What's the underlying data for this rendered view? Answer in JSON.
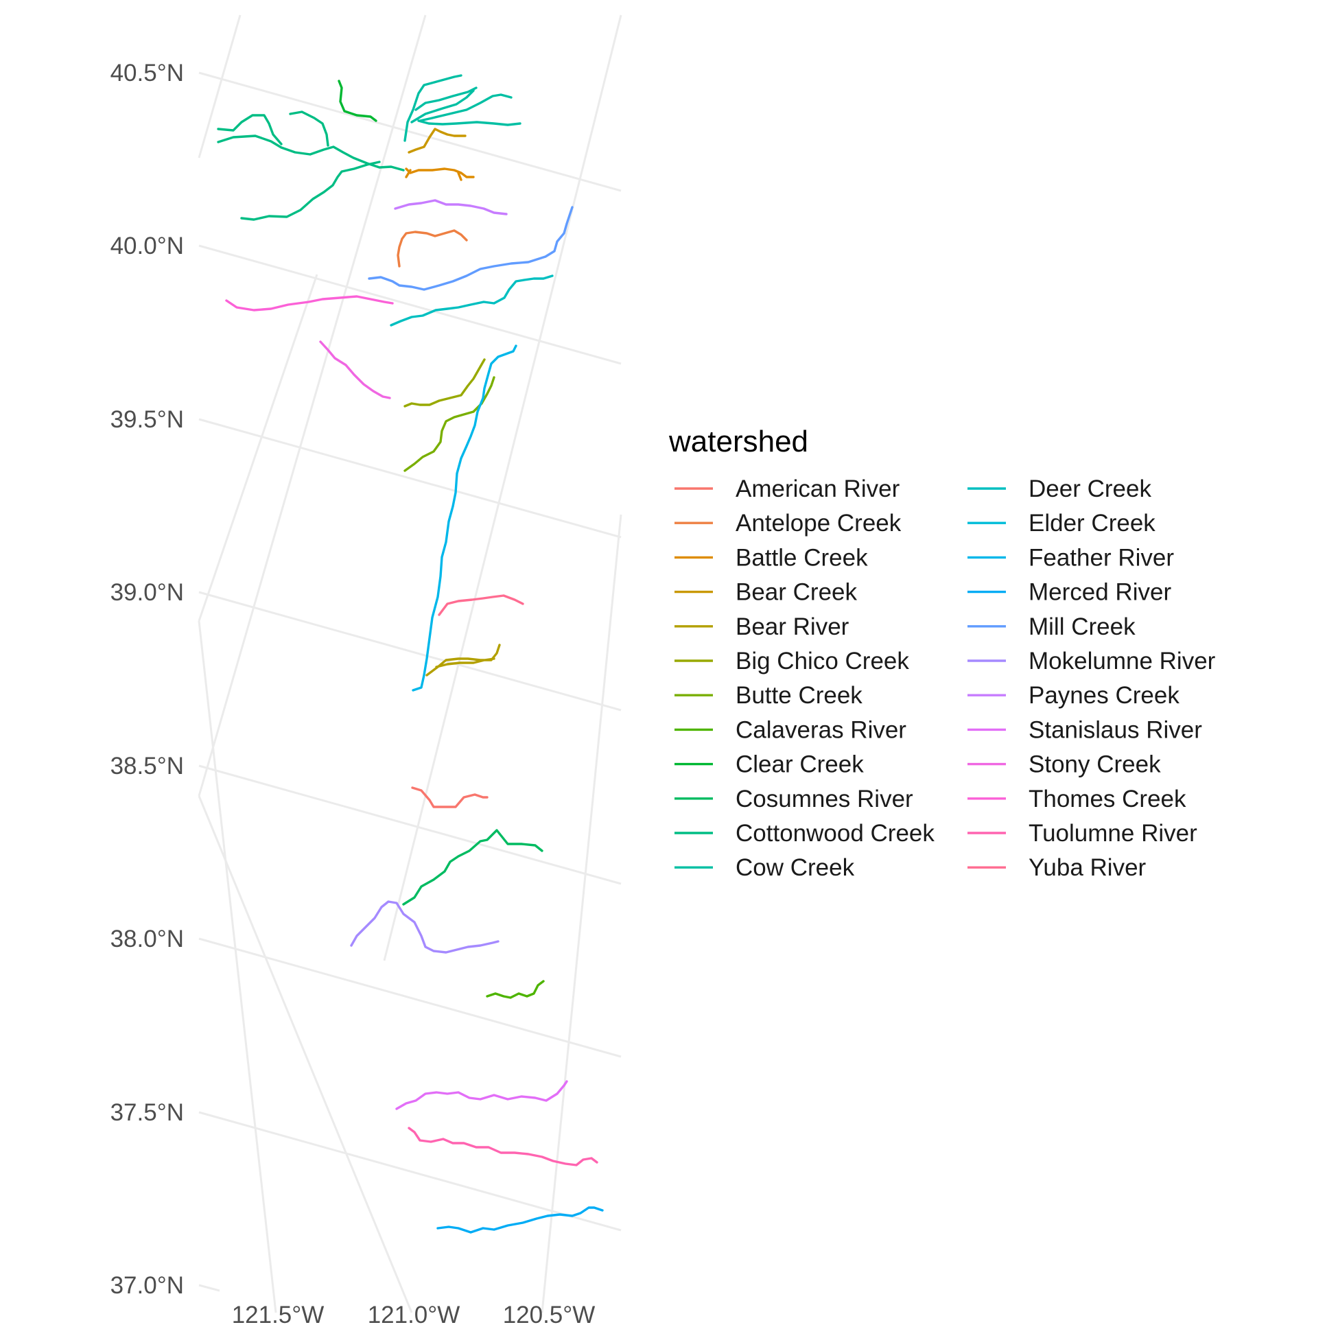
{
  "map": {
    "lat_labels": [
      "40.5°N",
      "40.0°N",
      "39.5°N",
      "39.0°N",
      "38.5°N",
      "38.0°N",
      "37.5°N",
      "37.0°N"
    ],
    "lon_labels": [
      "121.5°W",
      "121.0°W",
      "120.5°W"
    ]
  },
  "legend": {
    "title": "watershed",
    "items": [
      {
        "name": "American River",
        "color": "#F8766D"
      },
      {
        "name": "Antelope Creek",
        "color": "#EE8043"
      },
      {
        "name": "Battle Creek",
        "color": "#DE8C00"
      },
      {
        "name": "Bear Creek",
        "color": "#C99800"
      },
      {
        "name": "Bear River",
        "color": "#B3A000"
      },
      {
        "name": "Big Chico Creek",
        "color": "#98A900"
      },
      {
        "name": "Butte Creek",
        "color": "#79AF00"
      },
      {
        "name": "Calaveras River",
        "color": "#4EB400"
      },
      {
        "name": "Clear Creek",
        "color": "#00B832"
      },
      {
        "name": "Cosumnes River",
        "color": "#00BB61"
      },
      {
        "name": "Cottonwood Creek",
        "color": "#00BD84"
      },
      {
        "name": "Cow Creek",
        "color": "#00BFA3"
      },
      {
        "name": "Deer Creek",
        "color": "#00BFC0"
      },
      {
        "name": "Elder Creek",
        "color": "#00BCD8"
      },
      {
        "name": "Feather River",
        "color": "#00B7EA"
      },
      {
        "name": "Merced River",
        "color": "#00ACF5"
      },
      {
        "name": "Mill Creek",
        "color": "#619CFF"
      },
      {
        "name": "Mokelumne River",
        "color": "#A58AFF"
      },
      {
        "name": "Paynes Creek",
        "color": "#C77CFF"
      },
      {
        "name": "Stanislaus River",
        "color": "#E26EF7"
      },
      {
        "name": "Stony Creek",
        "color": "#F067E2"
      },
      {
        "name": "Thomes Creek",
        "color": "#FB61D7"
      },
      {
        "name": "Tuolumne River",
        "color": "#FF64B0"
      },
      {
        "name": "Yuba River",
        "color": "#FF6C91"
      }
    ]
  }
}
